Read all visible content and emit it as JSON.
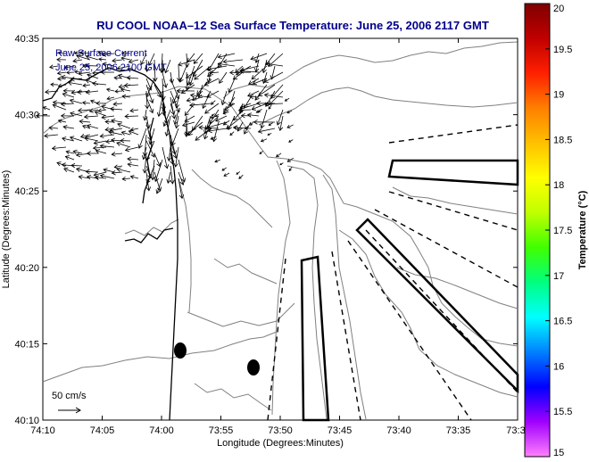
{
  "chart_data": {
    "type": "map",
    "title": "RU COOL  NOAA–12  Sea Surface Temperature:  June 25, 2006 2117 GMT",
    "annotation_lines": [
      "Raw Surface Current",
      "June 25, 2006 2100 GMT"
    ],
    "xlabel": "Longitude (Degrees:Minutes)",
    "ylabel": "Latitude (Degrees:Minutes)",
    "x_tick_labels": [
      "74:10",
      "74:05",
      "74:00",
      "73:55",
      "73:50",
      "73:45",
      "73:40",
      "73:35",
      "73:3"
    ],
    "y_tick_labels": [
      "40:35",
      "40:30",
      "40:25",
      "40:20",
      "40:15",
      "40:10"
    ],
    "scale_arrow_label": "50 cm/s",
    "colorbar": {
      "label": "Temperature (°C)",
      "ticks": [
        "20",
        "19.5",
        "19",
        "18.5",
        "18",
        "17.5",
        "17",
        "16.5",
        "16",
        "15.5",
        "15"
      ],
      "range": [
        15,
        20
      ],
      "colors": [
        "#ff80ff",
        "#a000ff",
        "#0000ff",
        "#0080ff",
        "#00ffff",
        "#00ff80",
        "#40ff00",
        "#c0ff00",
        "#ffff00",
        "#ffc000",
        "#ff8000",
        "#ff2000",
        "#c00000",
        "#800000"
      ]
    },
    "grid": false
  }
}
